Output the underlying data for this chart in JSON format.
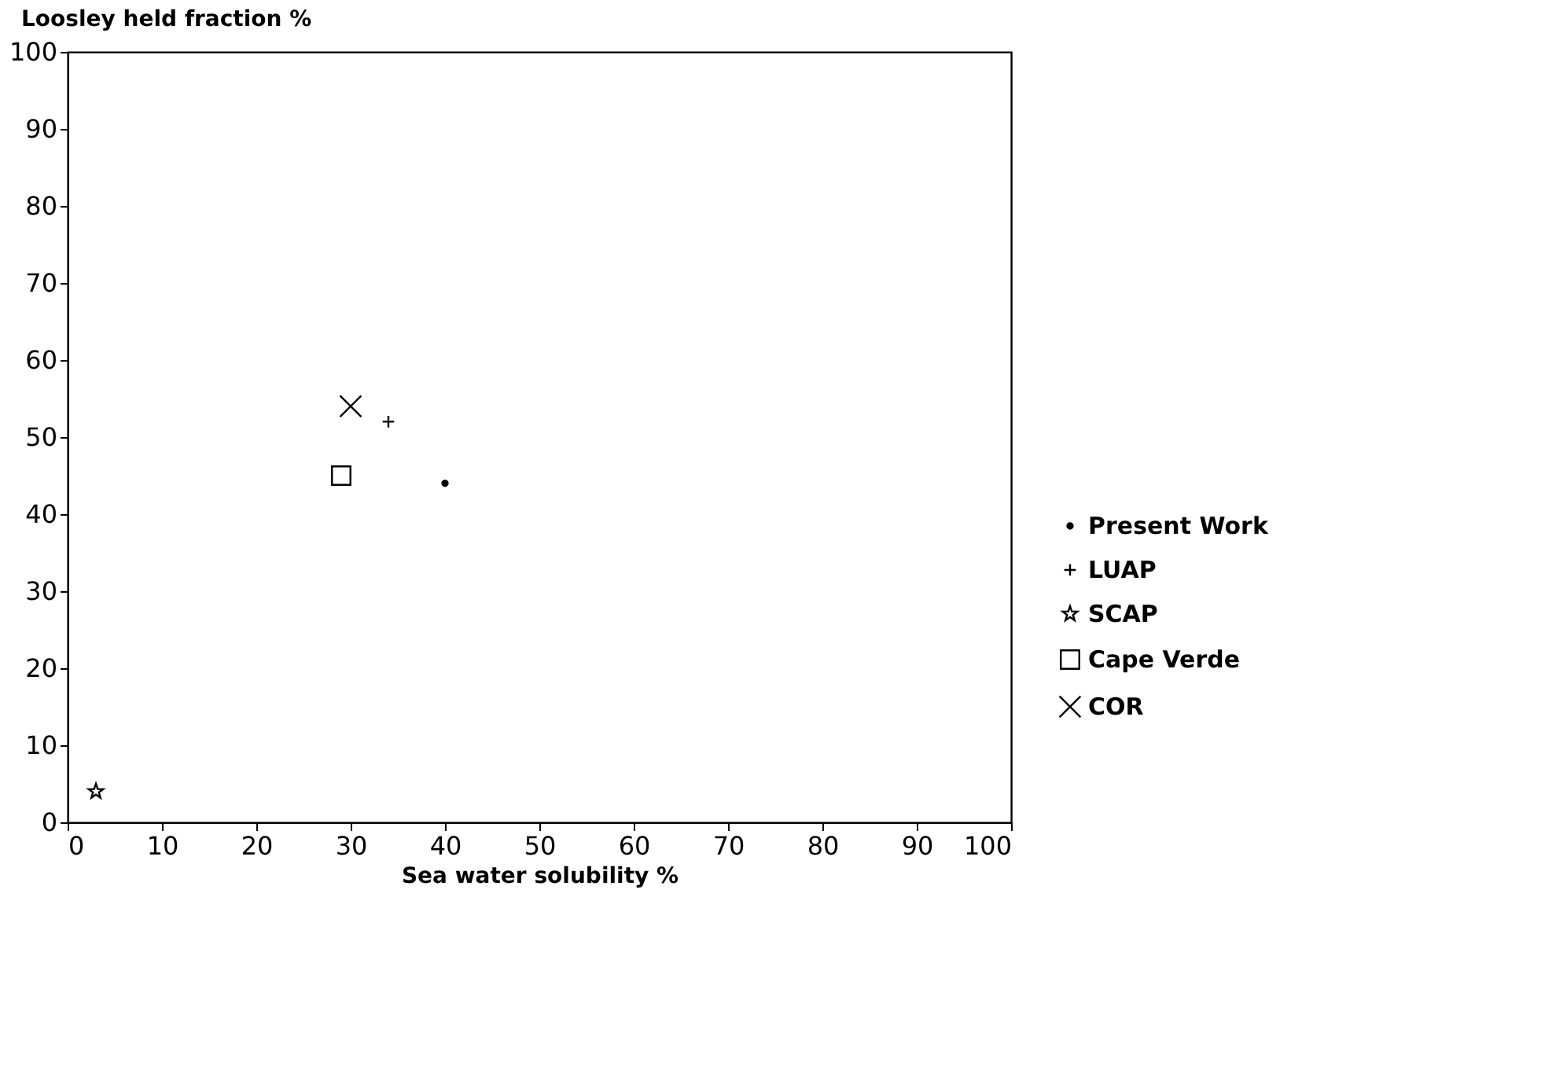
{
  "chart_data": {
    "type": "scatter",
    "xlabel": "Sea water solubility %",
    "ylabel": "Loosley held fraction %",
    "xlim": [
      0,
      100
    ],
    "ylim": [
      0,
      100
    ],
    "xticks": [
      0,
      10,
      20,
      30,
      40,
      50,
      60,
      70,
      80,
      90,
      100
    ],
    "yticks": [
      0,
      10,
      20,
      30,
      40,
      50,
      60,
      70,
      80,
      90,
      100
    ],
    "grid": false,
    "legend": "right",
    "series": [
      {
        "name": "Present Work",
        "color": "#000000",
        "marker": "circle",
        "x": [
          40
        ],
        "values": [
          44
        ]
      },
      {
        "name": "LUAP",
        "color": "#000000",
        "marker": "cross",
        "x": [
          34
        ],
        "values": [
          52
        ]
      },
      {
        "name": "SCAP",
        "color": "#000000",
        "marker": "star",
        "x": [
          3
        ],
        "values": [
          4
        ]
      },
      {
        "name": "Cape Verde",
        "color": "#000000",
        "marker": "square",
        "x": [
          29
        ],
        "values": [
          45
        ]
      },
      {
        "name": "COR",
        "color": "#000000",
        "marker": "x",
        "x": [
          30
        ],
        "values": [
          54
        ]
      }
    ]
  }
}
